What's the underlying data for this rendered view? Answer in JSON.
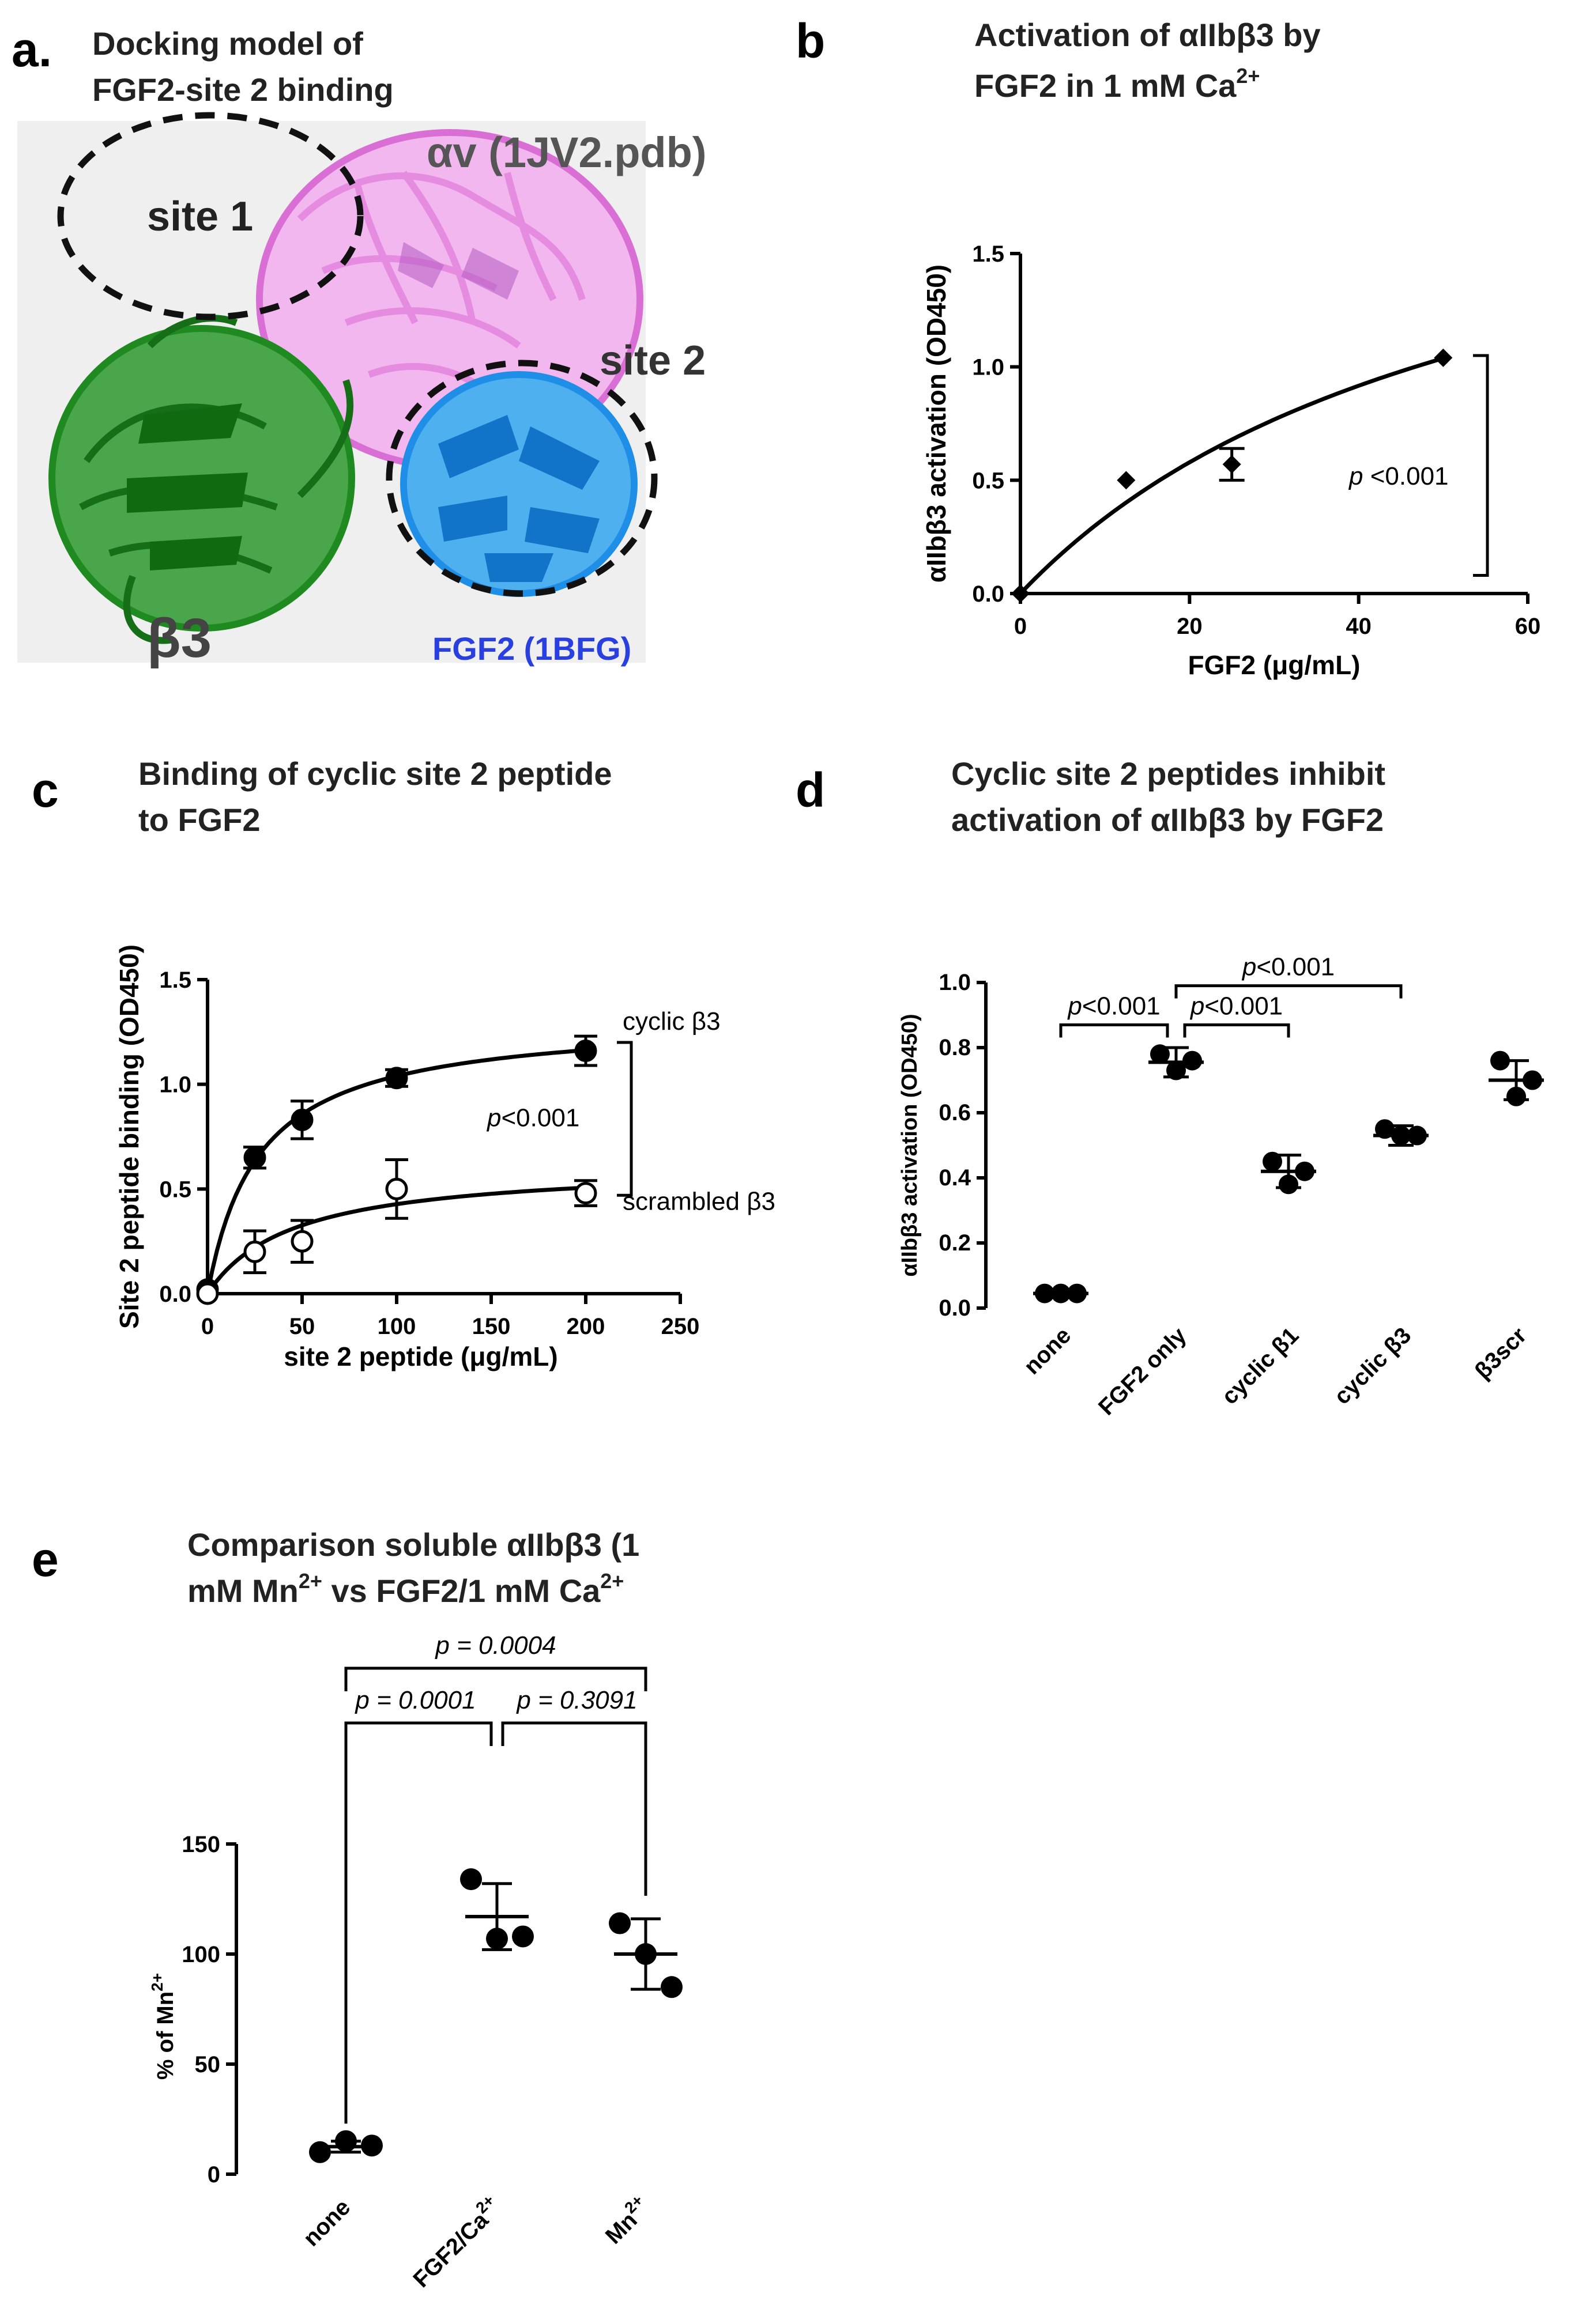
{
  "panels": {
    "a": {
      "label": "a.",
      "title_lines": [
        "Docking model of",
        "FGF2-site 2 binding"
      ],
      "labels": {
        "site1": "site 1",
        "site2": "site 2",
        "alpha_v": "αv (1JV2.pdb)",
        "beta3": "β3",
        "fgf2": "FGF2 (1BFG)"
      },
      "colors": {
        "alpha_v": "#e58be0",
        "beta3": "#1f8a1f",
        "fgf2": "#1e8ee6",
        "fgf2_label": "#2a3fe0"
      }
    },
    "b": {
      "label": "b",
      "title_lines": [
        "Activation of αIIbβ3 by",
        "FGF2 in 1 mM Ca"
      ],
      "title_sup": "2+"
    },
    "c": {
      "label": "c",
      "title_lines": [
        "Binding of cyclic site 2 peptide",
        "to FGF2"
      ]
    },
    "d": {
      "label": "d",
      "title_lines": [
        "Cyclic site 2 peptides inhibit",
        "activation of αIIbβ3 by FGF2"
      ]
    },
    "e": {
      "label": "e",
      "title_line1": "Comparison soluble αIIbβ3 (1",
      "title_line2_parts": [
        "mM Mn",
        "2+",
        " vs FGF2/1 mM Ca",
        "2+"
      ]
    }
  },
  "chart_data": [
    {
      "id": "b",
      "type": "scatter",
      "xlabel": "FGF2 (μg/mL)",
      "ylabel": "αIIbβ3 activation (OD450)",
      "xlim": [
        0,
        60
      ],
      "ylim": [
        0,
        1.5
      ],
      "xticks": [
        0,
        20,
        40,
        60
      ],
      "yticks": [
        0.0,
        0.5,
        1.0,
        1.5
      ],
      "ytick_labels": [
        "0.0",
        "0.5",
        "1.0",
        "1.5"
      ],
      "points": [
        {
          "x": 0,
          "y": 0.0,
          "err": 0
        },
        {
          "x": 12.5,
          "y": 0.5,
          "err": 0
        },
        {
          "x": 25,
          "y": 0.57,
          "err": 0.07
        },
        {
          "x": 50,
          "y": 1.04,
          "err": 0
        }
      ],
      "fit": {
        "model": "one-site",
        "bmax": 2.2,
        "kd": 56
      },
      "bracket": {
        "y_top": 1.05,
        "y_bottom": 0.08
      },
      "annotation": {
        "italic": "p",
        "text": " <0.001"
      }
    },
    {
      "id": "c",
      "type": "scatter",
      "xlabel": "site 2 peptide  (μg/mL)",
      "ylabel": "Site 2 peptide binding  (OD450)",
      "xlim": [
        0,
        250
      ],
      "ylim": [
        0,
        1.5
      ],
      "xticks": [
        0,
        50,
        100,
        150,
        200,
        250
      ],
      "yticks": [
        0.0,
        0.5,
        1.0,
        1.5
      ],
      "ytick_labels": [
        "0.0",
        "0.5",
        "1.0",
        "1.5"
      ],
      "series": [
        {
          "name": "cyclic β3",
          "filled": true,
          "points": [
            {
              "x": 0,
              "y": 0.02,
              "err": 0
            },
            {
              "x": 25,
              "y": 0.65,
              "err": 0.05
            },
            {
              "x": 50,
              "y": 0.83,
              "err": 0.09
            },
            {
              "x": 100,
              "y": 1.03,
              "err": 0.04
            },
            {
              "x": 200,
              "y": 1.16,
              "err": 0.07
            }
          ],
          "fit": {
            "bmax": 1.32,
            "kd": 27
          }
        },
        {
          "name": "scrambled β3",
          "filled": false,
          "points": [
            {
              "x": 0,
              "y": 0.0,
              "err": 0
            },
            {
              "x": 25,
              "y": 0.2,
              "err": 0.1
            },
            {
              "x": 50,
              "y": 0.25,
              "err": 0.1
            },
            {
              "x": 100,
              "y": 0.5,
              "err": 0.14
            },
            {
              "x": 200,
              "y": 0.48,
              "err": 0.06
            }
          ],
          "fit": {
            "bmax": 0.62,
            "kd": 45
          }
        }
      ],
      "bracket": {
        "y_top": 1.2,
        "y_bottom": 0.47
      },
      "annotation": {
        "italic": "p",
        "text": "<0.001"
      }
    },
    {
      "id": "d",
      "type": "scatter",
      "ylabel": "αIIbβ3 activation (OD450)",
      "ylim": [
        0,
        1.0
      ],
      "yticks": [
        0.0,
        0.2,
        0.4,
        0.6,
        0.8,
        1.0
      ],
      "ytick_labels": [
        "0.0",
        "0.2",
        "0.4",
        "0.6",
        "0.8",
        "1.0"
      ],
      "categories": [
        "none",
        "FGF2 only",
        "cyclic β1",
        "cyclic β3",
        "β3scr"
      ],
      "groups": [
        {
          "points": [
            0.045,
            0.045,
            0.045
          ],
          "mean": 0.045,
          "sd": 0.0
        },
        {
          "points": [
            0.78,
            0.73,
            0.76
          ],
          "mean": 0.755,
          "sd": 0.045
        },
        {
          "points": [
            0.45,
            0.38,
            0.42
          ],
          "mean": 0.42,
          "sd": 0.05
        },
        {
          "points": [
            0.55,
            0.53,
            0.53
          ],
          "mean": 0.53,
          "sd": 0.03
        },
        {
          "points": [
            0.76,
            0.65,
            0.7
          ],
          "mean": 0.7,
          "sd": 0.06
        }
      ],
      "comparisons": [
        {
          "from": 0,
          "to": 1,
          "y": 0.87,
          "label": "p<0.001",
          "italic": "p",
          "rest": "<0.001"
        },
        {
          "from": 1,
          "to": 2,
          "y": 0.87,
          "label": "p<0.001",
          "italic": "p",
          "rest": "<0.001"
        },
        {
          "from": 1,
          "to": 3,
          "y": 0.99,
          "label": "p<0.001",
          "italic": "p",
          "rest": "<0.001"
        }
      ]
    },
    {
      "id": "e",
      "type": "scatter",
      "ylabel_parts": [
        "% of Mn",
        "2+"
      ],
      "ylim": [
        0,
        150
      ],
      "yticks": [
        0,
        50,
        100,
        150
      ],
      "ytick_labels": [
        "0",
        "50",
        "100",
        "150"
      ],
      "categories": [
        {
          "parts": [
            "none"
          ]
        },
        {
          "parts": [
            "FGF2/Ca",
            "2+"
          ]
        },
        {
          "parts": [
            "Mn",
            "2+"
          ]
        }
      ],
      "groups": [
        {
          "points": [
            10,
            15,
            13
          ],
          "mean": 12.5,
          "sd": 2.5
        },
        {
          "points": [
            134,
            107,
            108
          ],
          "mean": 117,
          "sd": 15
        },
        {
          "points": [
            114,
            100,
            85
          ],
          "mean": 100,
          "sd": 16
        }
      ],
      "comparisons": [
        {
          "from": 0,
          "to": 1,
          "label": "p = 0.0001"
        },
        {
          "from": 1,
          "to": 2,
          "label": "p = 0.3091"
        },
        {
          "from": 0,
          "to": 2,
          "label": "p = 0.0004"
        }
      ]
    }
  ]
}
